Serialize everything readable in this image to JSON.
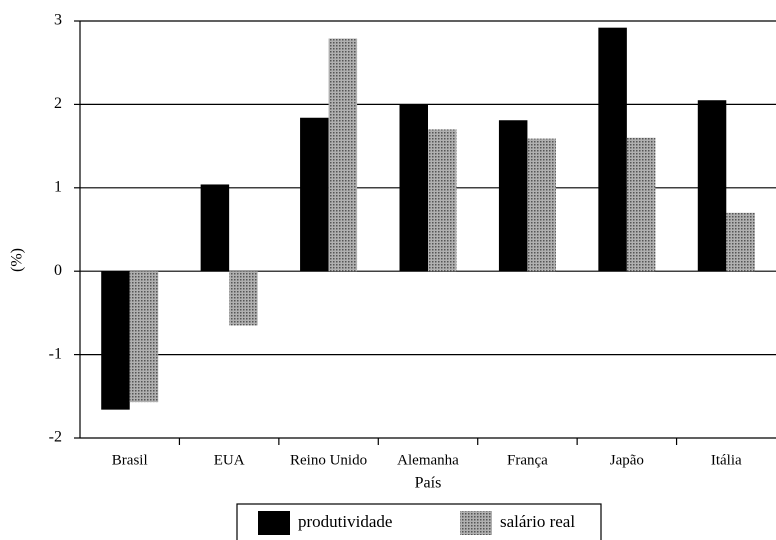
{
  "chart_data": {
    "type": "bar",
    "xlabel": "País",
    "ylabel": "(%)",
    "categories": [
      "Brasil",
      "EUA",
      "Reino Unido",
      "Alemanha",
      "França",
      "Japão",
      "Itália"
    ],
    "series": [
      {
        "name": "produtividade",
        "color": "#000000",
        "values": [
          -1.66,
          1.04,
          1.84,
          2.0,
          1.81,
          2.92,
          2.05
        ]
      },
      {
        "name": "salário real",
        "color": "#8a8a8a",
        "values": [
          -1.57,
          -0.65,
          2.79,
          1.7,
          1.59,
          1.6,
          0.7
        ]
      }
    ],
    "ylim": [
      -2,
      3
    ],
    "yticks": [
      3,
      2,
      1,
      0,
      -1,
      -2
    ],
    "grid": true,
    "legend": "bottom"
  }
}
